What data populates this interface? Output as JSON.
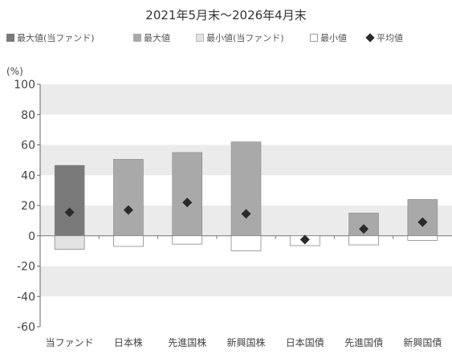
{
  "header": {
    "period": "2021年5月末～2026年4月末"
  },
  "legend": [
    {
      "label": "最大値(当ファンド)",
      "kind": "max-fund"
    },
    {
      "label": "最大値",
      "kind": "max"
    },
    {
      "label": "最小値(当ファンド)",
      "kind": "min-fund"
    },
    {
      "label": "最小値",
      "kind": "min"
    },
    {
      "label": "平均値",
      "kind": "avg"
    }
  ],
  "y_unit": "(%)",
  "colors": {
    "max_fund": "#7a7a7a",
    "max": "#a9a9a9",
    "min_fund": "#e3e3e3",
    "min": "#ffffff",
    "marker": "#2a2a2a",
    "band": "#ebebeb"
  },
  "chart_data": {
    "type": "bar",
    "categories": [
      "当ファンド",
      "日本株",
      "先進国株",
      "新興国株",
      "日本国債",
      "先進国債",
      "新興国債"
    ],
    "series": [
      {
        "name": "最大値",
        "values": [
          46.5,
          50.5,
          55.0,
          62.0,
          0.0,
          15.0,
          24.0
        ]
      },
      {
        "name": "最小値",
        "values": [
          -9.0,
          -7.0,
          -5.5,
          -10.0,
          -6.5,
          -6.0,
          -3.0
        ]
      },
      {
        "name": "平均値",
        "values": [
          15.5,
          17.0,
          22.0,
          14.5,
          -2.5,
          4.5,
          9.0
        ]
      }
    ],
    "ylim": [
      -60,
      100
    ],
    "yticks": [
      -60,
      -40,
      -20,
      0,
      20,
      40,
      60,
      80,
      100
    ]
  }
}
